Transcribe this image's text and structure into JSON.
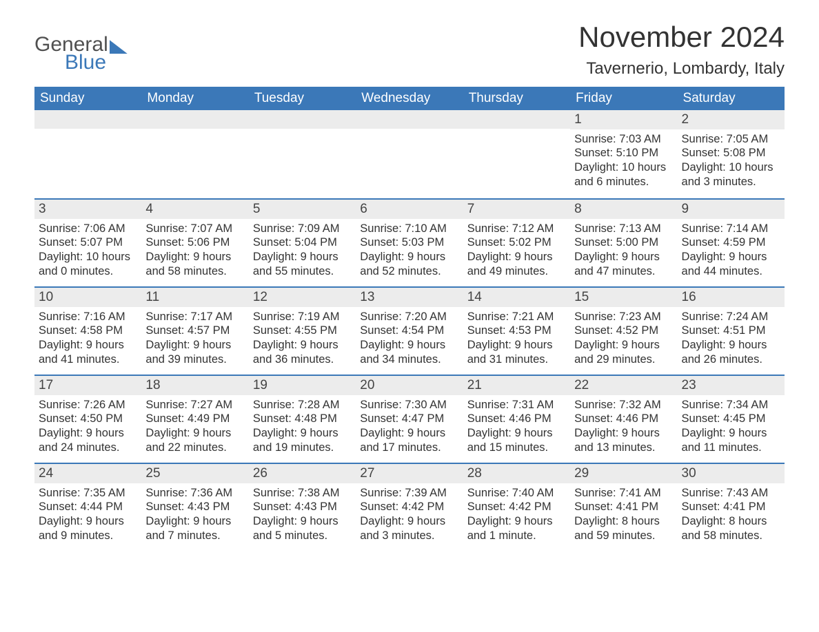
{
  "logo": {
    "general": "General",
    "blue": "Blue"
  },
  "title": "November 2024",
  "subtitle": "Tavernerio, Lombardy, Italy",
  "columns": [
    "Sunday",
    "Monday",
    "Tuesday",
    "Wednesday",
    "Thursday",
    "Friday",
    "Saturday"
  ],
  "header_bg": "#3b78b8",
  "header_text_color": "#ffffff",
  "daynum_bg": "#ececec",
  "row_border_color": "#3b78b8",
  "body_text_color": "#333333",
  "background_color": "#ffffff",
  "title_fontsize": 42,
  "subtitle_fontsize": 24,
  "header_fontsize": 19,
  "daynum_fontsize": 19,
  "cell_fontsize": 16.5,
  "weeks": [
    [
      {
        "empty": true
      },
      {
        "empty": true
      },
      {
        "empty": true
      },
      {
        "empty": true
      },
      {
        "empty": true
      },
      {
        "day": "1",
        "sunrise": "Sunrise: 7:03 AM",
        "sunset": "Sunset: 5:10 PM",
        "dl1": "Daylight: 10 hours",
        "dl2": "and 6 minutes."
      },
      {
        "day": "2",
        "sunrise": "Sunrise: 7:05 AM",
        "sunset": "Sunset: 5:08 PM",
        "dl1": "Daylight: 10 hours",
        "dl2": "and 3 minutes."
      }
    ],
    [
      {
        "day": "3",
        "sunrise": "Sunrise: 7:06 AM",
        "sunset": "Sunset: 5:07 PM",
        "dl1": "Daylight: 10 hours",
        "dl2": "and 0 minutes."
      },
      {
        "day": "4",
        "sunrise": "Sunrise: 7:07 AM",
        "sunset": "Sunset: 5:06 PM",
        "dl1": "Daylight: 9 hours",
        "dl2": "and 58 minutes."
      },
      {
        "day": "5",
        "sunrise": "Sunrise: 7:09 AM",
        "sunset": "Sunset: 5:04 PM",
        "dl1": "Daylight: 9 hours",
        "dl2": "and 55 minutes."
      },
      {
        "day": "6",
        "sunrise": "Sunrise: 7:10 AM",
        "sunset": "Sunset: 5:03 PM",
        "dl1": "Daylight: 9 hours",
        "dl2": "and 52 minutes."
      },
      {
        "day": "7",
        "sunrise": "Sunrise: 7:12 AM",
        "sunset": "Sunset: 5:02 PM",
        "dl1": "Daylight: 9 hours",
        "dl2": "and 49 minutes."
      },
      {
        "day": "8",
        "sunrise": "Sunrise: 7:13 AM",
        "sunset": "Sunset: 5:00 PM",
        "dl1": "Daylight: 9 hours",
        "dl2": "and 47 minutes."
      },
      {
        "day": "9",
        "sunrise": "Sunrise: 7:14 AM",
        "sunset": "Sunset: 4:59 PM",
        "dl1": "Daylight: 9 hours",
        "dl2": "and 44 minutes."
      }
    ],
    [
      {
        "day": "10",
        "sunrise": "Sunrise: 7:16 AM",
        "sunset": "Sunset: 4:58 PM",
        "dl1": "Daylight: 9 hours",
        "dl2": "and 41 minutes."
      },
      {
        "day": "11",
        "sunrise": "Sunrise: 7:17 AM",
        "sunset": "Sunset: 4:57 PM",
        "dl1": "Daylight: 9 hours",
        "dl2": "and 39 minutes."
      },
      {
        "day": "12",
        "sunrise": "Sunrise: 7:19 AM",
        "sunset": "Sunset: 4:55 PM",
        "dl1": "Daylight: 9 hours",
        "dl2": "and 36 minutes."
      },
      {
        "day": "13",
        "sunrise": "Sunrise: 7:20 AM",
        "sunset": "Sunset: 4:54 PM",
        "dl1": "Daylight: 9 hours",
        "dl2": "and 34 minutes."
      },
      {
        "day": "14",
        "sunrise": "Sunrise: 7:21 AM",
        "sunset": "Sunset: 4:53 PM",
        "dl1": "Daylight: 9 hours",
        "dl2": "and 31 minutes."
      },
      {
        "day": "15",
        "sunrise": "Sunrise: 7:23 AM",
        "sunset": "Sunset: 4:52 PM",
        "dl1": "Daylight: 9 hours",
        "dl2": "and 29 minutes."
      },
      {
        "day": "16",
        "sunrise": "Sunrise: 7:24 AM",
        "sunset": "Sunset: 4:51 PM",
        "dl1": "Daylight: 9 hours",
        "dl2": "and 26 minutes."
      }
    ],
    [
      {
        "day": "17",
        "sunrise": "Sunrise: 7:26 AM",
        "sunset": "Sunset: 4:50 PM",
        "dl1": "Daylight: 9 hours",
        "dl2": "and 24 minutes."
      },
      {
        "day": "18",
        "sunrise": "Sunrise: 7:27 AM",
        "sunset": "Sunset: 4:49 PM",
        "dl1": "Daylight: 9 hours",
        "dl2": "and 22 minutes."
      },
      {
        "day": "19",
        "sunrise": "Sunrise: 7:28 AM",
        "sunset": "Sunset: 4:48 PM",
        "dl1": "Daylight: 9 hours",
        "dl2": "and 19 minutes."
      },
      {
        "day": "20",
        "sunrise": "Sunrise: 7:30 AM",
        "sunset": "Sunset: 4:47 PM",
        "dl1": "Daylight: 9 hours",
        "dl2": "and 17 minutes."
      },
      {
        "day": "21",
        "sunrise": "Sunrise: 7:31 AM",
        "sunset": "Sunset: 4:46 PM",
        "dl1": "Daylight: 9 hours",
        "dl2": "and 15 minutes."
      },
      {
        "day": "22",
        "sunrise": "Sunrise: 7:32 AM",
        "sunset": "Sunset: 4:46 PM",
        "dl1": "Daylight: 9 hours",
        "dl2": "and 13 minutes."
      },
      {
        "day": "23",
        "sunrise": "Sunrise: 7:34 AM",
        "sunset": "Sunset: 4:45 PM",
        "dl1": "Daylight: 9 hours",
        "dl2": "and 11 minutes."
      }
    ],
    [
      {
        "day": "24",
        "sunrise": "Sunrise: 7:35 AM",
        "sunset": "Sunset: 4:44 PM",
        "dl1": "Daylight: 9 hours",
        "dl2": "and 9 minutes."
      },
      {
        "day": "25",
        "sunrise": "Sunrise: 7:36 AM",
        "sunset": "Sunset: 4:43 PM",
        "dl1": "Daylight: 9 hours",
        "dl2": "and 7 minutes."
      },
      {
        "day": "26",
        "sunrise": "Sunrise: 7:38 AM",
        "sunset": "Sunset: 4:43 PM",
        "dl1": "Daylight: 9 hours",
        "dl2": "and 5 minutes."
      },
      {
        "day": "27",
        "sunrise": "Sunrise: 7:39 AM",
        "sunset": "Sunset: 4:42 PM",
        "dl1": "Daylight: 9 hours",
        "dl2": "and 3 minutes."
      },
      {
        "day": "28",
        "sunrise": "Sunrise: 7:40 AM",
        "sunset": "Sunset: 4:42 PM",
        "dl1": "Daylight: 9 hours",
        "dl2": "and 1 minute."
      },
      {
        "day": "29",
        "sunrise": "Sunrise: 7:41 AM",
        "sunset": "Sunset: 4:41 PM",
        "dl1": "Daylight: 8 hours",
        "dl2": "and 59 minutes."
      },
      {
        "day": "30",
        "sunrise": "Sunrise: 7:43 AM",
        "sunset": "Sunset: 4:41 PM",
        "dl1": "Daylight: 8 hours",
        "dl2": "and 58 minutes."
      }
    ]
  ]
}
